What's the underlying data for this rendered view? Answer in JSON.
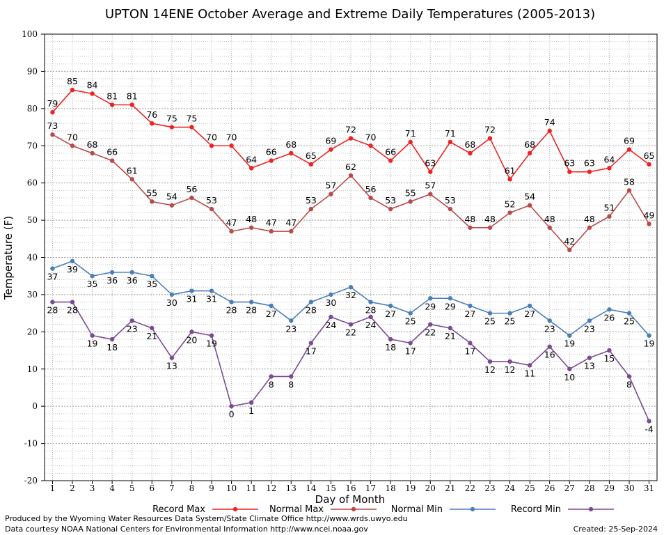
{
  "chart_data": {
    "type": "line",
    "title": "UPTON 14ENE October Average and Extreme Daily Temperatures (2005-2013)",
    "xlabel": "Day of Month",
    "ylabel": "Temperature (F)",
    "x": [
      1,
      2,
      3,
      4,
      5,
      6,
      7,
      8,
      9,
      10,
      11,
      12,
      13,
      14,
      15,
      16,
      17,
      18,
      19,
      20,
      21,
      22,
      23,
      24,
      25,
      26,
      27,
      28,
      29,
      30,
      31
    ],
    "xlim": [
      0.6,
      31.4
    ],
    "ylim": [
      -20,
      100
    ],
    "yticks": [
      -20,
      -10,
      0,
      10,
      20,
      30,
      40,
      50,
      60,
      70,
      80,
      90,
      100
    ],
    "grid": true,
    "legend_position": "bottom",
    "series": [
      {
        "name": "Record Max",
        "color": "#ee2222",
        "label_position": "above",
        "values": [
          79,
          85,
          84,
          81,
          81,
          76,
          75,
          75,
          70,
          70,
          64,
          66,
          68,
          65,
          69,
          72,
          70,
          66,
          71,
          63,
          71,
          68,
          72,
          61,
          68,
          74,
          63,
          63,
          64,
          69,
          65
        ]
      },
      {
        "name": "Normal Max",
        "color": "#b84a4a",
        "label_position": "above",
        "values": [
          73,
          70,
          68,
          66,
          61,
          55,
          54,
          56,
          53,
          47,
          48,
          47,
          47,
          53,
          57,
          62,
          56,
          53,
          55,
          57,
          53,
          48,
          48,
          52,
          54,
          48,
          42,
          48,
          51,
          58,
          49
        ]
      },
      {
        "name": "Normal Min",
        "color": "#4a7fb8",
        "label_position": "below",
        "values": [
          37,
          39,
          35,
          36,
          36,
          35,
          30,
          31,
          31,
          28,
          28,
          27,
          23,
          28,
          30,
          32,
          28,
          27,
          25,
          29,
          29,
          27,
          25,
          25,
          27,
          23,
          19,
          23,
          26,
          25,
          19
        ]
      },
      {
        "name": "Record Min",
        "color": "#7b4a94",
        "label_position": "below",
        "values": [
          28,
          28,
          19,
          18,
          23,
          21,
          13,
          20,
          19,
          0,
          1,
          8,
          8,
          17,
          24,
          22,
          24,
          18,
          17,
          22,
          21,
          17,
          12,
          12,
          11,
          16,
          10,
          13,
          15,
          8,
          -4
        ]
      }
    ]
  },
  "footer": {
    "produced_by": "Produced by the Wyoming Water Resources Data System/State Climate Office http://www.wrds.uwyo.edu",
    "data_courtesy": "Data courtesy NOAA National Centers for Environmental Information http://www.ncei.noaa.gov",
    "created": "Created:  25-Sep-2024"
  }
}
